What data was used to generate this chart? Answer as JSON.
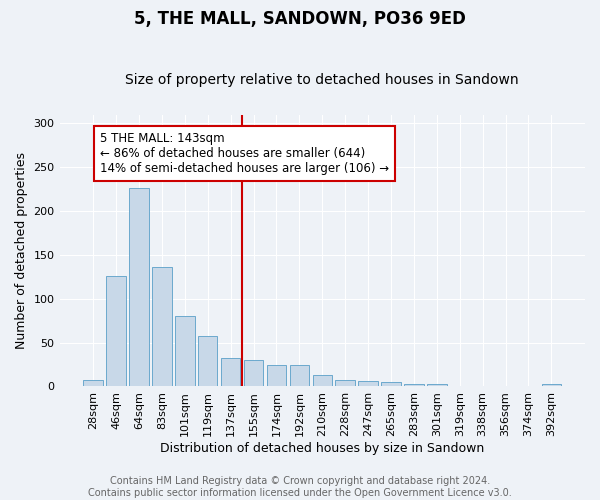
{
  "title": "5, THE MALL, SANDOWN, PO36 9ED",
  "subtitle": "Size of property relative to detached houses in Sandown",
  "xlabel": "Distribution of detached houses by size in Sandown",
  "ylabel": "Number of detached properties",
  "footer_line1": "Contains HM Land Registry data © Crown copyright and database right 2024.",
  "footer_line2": "Contains public sector information licensed under the Open Government Licence v3.0.",
  "categories": [
    "28sqm",
    "46sqm",
    "64sqm",
    "83sqm",
    "101sqm",
    "119sqm",
    "137sqm",
    "155sqm",
    "174sqm",
    "192sqm",
    "210sqm",
    "228sqm",
    "247sqm",
    "265sqm",
    "283sqm",
    "301sqm",
    "319sqm",
    "338sqm",
    "356sqm",
    "374sqm",
    "392sqm"
  ],
  "values": [
    7,
    126,
    226,
    136,
    80,
    58,
    33,
    30,
    25,
    25,
    13,
    7,
    6,
    5,
    3,
    3,
    0,
    1,
    0,
    0,
    3
  ],
  "bar_color": "#c8d8e8",
  "bar_edge_color": "#5a9fc8",
  "vline_x_index": 6,
  "vline_color": "#cc0000",
  "annotation_line1": "5 THE MALL: 143sqm",
  "annotation_line2": "← 86% of detached houses are smaller (644)",
  "annotation_line3": "14% of semi-detached houses are larger (106) →",
  "annotation_box_color": "#cc0000",
  "ylim": [
    0,
    310
  ],
  "yticks": [
    0,
    50,
    100,
    150,
    200,
    250,
    300
  ],
  "title_fontsize": 12,
  "subtitle_fontsize": 10,
  "axis_label_fontsize": 9,
  "tick_fontsize": 8,
  "annotation_fontsize": 8.5,
  "footer_fontsize": 7,
  "background_color": "#eef2f7",
  "plot_background_color": "#eef2f7"
}
